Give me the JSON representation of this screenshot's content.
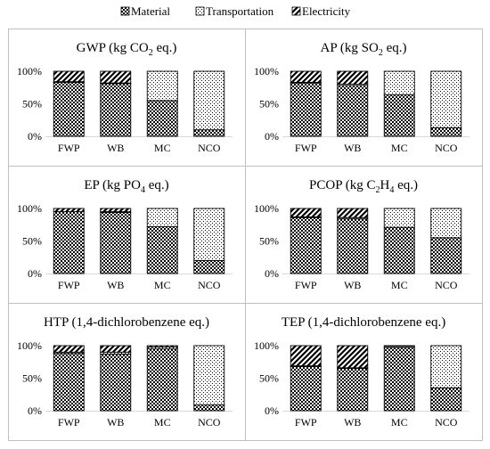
{
  "legend": [
    {
      "key": "material",
      "label": "Material",
      "pattern": "checker"
    },
    {
      "key": "transportation",
      "label": "Transportation",
      "pattern": "dots"
    },
    {
      "key": "electricity",
      "label": "Electricity",
      "pattern": "diag"
    }
  ],
  "colors": {
    "border": "#bfbfbf",
    "bar_outline": "#000000",
    "axis": "#d9d9d9"
  },
  "chart_data": [
    {
      "type": "bar",
      "stacked": true,
      "percent": true,
      "title": "GWP (kg CO",
      "title_sub": "2",
      "title_tail": " eq.)",
      "categories": [
        "FWP",
        "WB",
        "MC",
        "NCO"
      ],
      "yticks": [
        "0%",
        "50%",
        "100%"
      ],
      "ylim": [
        0,
        100
      ],
      "series": [
        {
          "name": "Material",
          "values": [
            83,
            81,
            55,
            10
          ]
        },
        {
          "name": "Transportation",
          "values": [
            1,
            1,
            45,
            90
          ]
        },
        {
          "name": "Electricity",
          "values": [
            16,
            18,
            0,
            0
          ]
        }
      ]
    },
    {
      "type": "bar",
      "stacked": true,
      "percent": true,
      "title": "AP  (kg SO",
      "title_sub": "2",
      "title_tail": " eq.)",
      "categories": [
        "FWP",
        "WB",
        "MC",
        "NCO"
      ],
      "yticks": [
        "0%",
        "50%",
        "100%"
      ],
      "ylim": [
        0,
        100
      ],
      "series": [
        {
          "name": "Material",
          "values": [
            82,
            78,
            64,
            13
          ]
        },
        {
          "name": "Transportation",
          "values": [
            1,
            2,
            36,
            87
          ]
        },
        {
          "name": "Electricity",
          "values": [
            17,
            20,
            0,
            0
          ]
        }
      ]
    },
    {
      "type": "bar",
      "stacked": true,
      "percent": true,
      "title": "EP (kg PO",
      "title_sub": "4",
      "title_tail": " eq.)",
      "categories": [
        "FWP",
        "WB",
        "MC",
        "NCO"
      ],
      "yticks": [
        "0%",
        "50%",
        "100%"
      ],
      "ylim": [
        0,
        100
      ],
      "series": [
        {
          "name": "Material",
          "values": [
            95,
            94,
            72,
            20
          ]
        },
        {
          "name": "Transportation",
          "values": [
            0,
            1,
            28,
            80
          ]
        },
        {
          "name": "Electricity",
          "values": [
            5,
            5,
            0,
            0
          ]
        }
      ]
    },
    {
      "type": "bar",
      "stacked": true,
      "percent": true,
      "title": "PCOP (kg C",
      "title_sub": "2",
      "title_mid": "H",
      "title_sub2": "4",
      "title_tail": " eq.)",
      "categories": [
        "FWP",
        "WB",
        "MC",
        "NCO"
      ],
      "yticks": [
        "0%",
        "50%",
        "100%"
      ],
      "ylim": [
        0,
        100
      ],
      "series": [
        {
          "name": "Material",
          "values": [
            86,
            84,
            71,
            55
          ]
        },
        {
          "name": "Transportation",
          "values": [
            1,
            2,
            29,
            45
          ]
        },
        {
          "name": "Electricity",
          "values": [
            13,
            14,
            0,
            0
          ]
        }
      ]
    },
    {
      "type": "bar",
      "stacked": true,
      "percent": true,
      "title": "HTP (1,4-dichlorobenzene eq.)",
      "categories": [
        "FWP",
        "WB",
        "MC",
        "NCO"
      ],
      "yticks": [
        "0%",
        "50%",
        "100%"
      ],
      "ylim": [
        0,
        100
      ],
      "series": [
        {
          "name": "Material",
          "values": [
            88,
            87,
            95,
            9
          ]
        },
        {
          "name": "Transportation",
          "values": [
            2,
            3,
            3,
            91
          ]
        },
        {
          "name": "Electricity",
          "values": [
            10,
            10,
            2,
            0
          ]
        }
      ]
    },
    {
      "type": "bar",
      "stacked": true,
      "percent": true,
      "title": "TEP (1,4-dichlorobenzene eq.)",
      "categories": [
        "FWP",
        "WB",
        "MC",
        "NCO"
      ],
      "yticks": [
        "0%",
        "50%",
        "100%"
      ],
      "ylim": [
        0,
        100
      ],
      "series": [
        {
          "name": "Material",
          "values": [
            68,
            65,
            97,
            35
          ]
        },
        {
          "name": "Transportation",
          "values": [
            1,
            1,
            2,
            65
          ]
        },
        {
          "name": "Electricity",
          "values": [
            31,
            34,
            1,
            0
          ]
        }
      ]
    }
  ]
}
